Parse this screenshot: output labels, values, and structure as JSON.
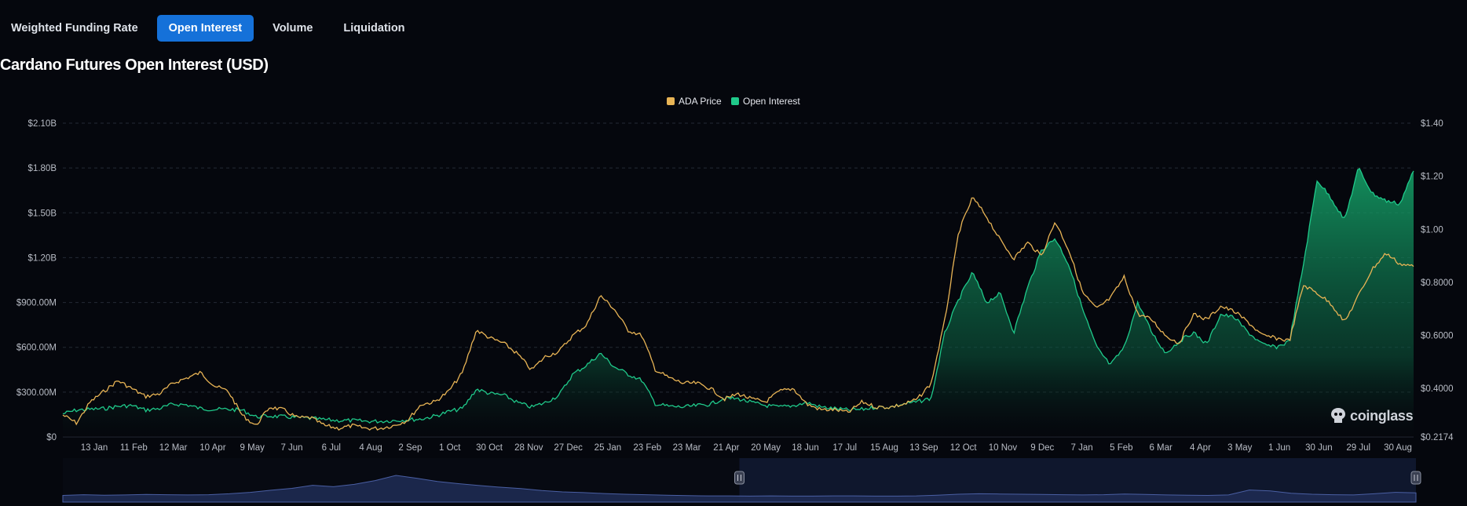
{
  "tabs": [
    {
      "label": "Weighted Funding Rate",
      "active": false
    },
    {
      "label": "Open Interest",
      "active": true
    },
    {
      "label": "Volume",
      "active": false
    },
    {
      "label": "Liquidation",
      "active": false
    }
  ],
  "brand": {
    "name": "coinglass"
  },
  "colors": {
    "background": "#05070d",
    "price_line": "#e8b455",
    "oi_line": "#1fc98a",
    "oi_fill_top": "#15a56a",
    "grid": "#242a35",
    "axis_text": "#b9bdc6",
    "navigator": "#1e2a52",
    "active_tab": "#1571d9"
  },
  "chart_data": {
    "type": "area",
    "title": "Cardano Futures Open Interest (USD)",
    "legend": [
      "ADA Price",
      "Open Interest"
    ],
    "legend_position": "top-center",
    "y_left": {
      "ticks": [
        "$0",
        "$300.00M",
        "$600.00M",
        "$900.00M",
        "$1.20B",
        "$1.50B",
        "$1.80B",
        "$2.10B"
      ],
      "min": 0,
      "max": 2100000000
    },
    "y_right": {
      "ticks": [
        "$0.2174",
        "$0.4000",
        "$0.6000",
        "$0.8000",
        "$1.00",
        "$1.20",
        "$1.40"
      ],
      "min": 0.2174,
      "max": 1.4
    },
    "x_ticks": [
      "13 Jan",
      "11 Feb",
      "12 Mar",
      "10 Apr",
      "9 May",
      "7 Jun",
      "6 Jul",
      "4 Aug",
      "2 Sep",
      "1 Oct",
      "30 Oct",
      "28 Nov",
      "27 Dec",
      "25 Jan",
      "23 Feb",
      "23 Mar",
      "21 Apr",
      "20 May",
      "18 Jun",
      "17 Jul",
      "15 Aug",
      "13 Sep",
      "12 Oct",
      "10 Nov",
      "9 Dec",
      "7 Jan",
      "5 Feb",
      "6 Mar",
      "4 Apr",
      "3 May",
      "1 Jun",
      "30 Jun",
      "29 Jul",
      "30 Aug"
    ],
    "series": [
      {
        "name": "ADA Price",
        "axis": "right",
        "values": [
          0.3,
          0.27,
          0.35,
          0.39,
          0.43,
          0.4,
          0.37,
          0.38,
          0.42,
          0.44,
          0.46,
          0.41,
          0.39,
          0.3,
          0.26,
          0.33,
          0.32,
          0.29,
          0.29,
          0.26,
          0.25,
          0.26,
          0.25,
          0.25,
          0.26,
          0.28,
          0.34,
          0.35,
          0.39,
          0.46,
          0.62,
          0.59,
          0.57,
          0.53,
          0.47,
          0.52,
          0.54,
          0.6,
          0.64,
          0.75,
          0.7,
          0.62,
          0.6,
          0.47,
          0.44,
          0.42,
          0.42,
          0.4,
          0.36,
          0.38,
          0.36,
          0.35,
          0.39,
          0.4,
          0.34,
          0.32,
          0.32,
          0.31,
          0.35,
          0.33,
          0.33,
          0.34,
          0.36,
          0.42,
          0.66,
          0.99,
          1.12,
          1.05,
          0.96,
          0.89,
          0.95,
          0.9,
          1.03,
          0.92,
          0.76,
          0.7,
          0.74,
          0.82,
          0.68,
          0.66,
          0.6,
          0.57,
          0.68,
          0.66,
          0.71,
          0.69,
          0.65,
          0.6,
          0.59,
          0.58,
          0.79,
          0.76,
          0.72,
          0.65,
          0.75,
          0.85,
          0.91,
          0.87,
          0.86
        ]
      },
      {
        "name": "Open Interest",
        "axis": "left",
        "values": [
          155000000,
          180000000,
          185000000,
          190000000,
          205000000,
          210000000,
          180000000,
          190000000,
          220000000,
          215000000,
          190000000,
          185000000,
          185000000,
          180000000,
          135000000,
          140000000,
          135000000,
          130000000,
          125000000,
          115000000,
          110000000,
          110000000,
          105000000,
          105000000,
          110000000,
          115000000,
          120000000,
          140000000,
          170000000,
          190000000,
          320000000,
          290000000,
          280000000,
          230000000,
          200000000,
          230000000,
          280000000,
          420000000,
          480000000,
          560000000,
          470000000,
          420000000,
          380000000,
          220000000,
          205000000,
          200000000,
          210000000,
          220000000,
          260000000,
          255000000,
          230000000,
          210000000,
          200000000,
          210000000,
          230000000,
          200000000,
          190000000,
          180000000,
          185000000,
          200000000,
          200000000,
          220000000,
          235000000,
          260000000,
          700000000,
          920000000,
          1100000000,
          900000000,
          960000000,
          700000000,
          1000000000,
          1250000000,
          1330000000,
          1150000000,
          850000000,
          600000000,
          480000000,
          600000000,
          900000000,
          700000000,
          560000000,
          640000000,
          700000000,
          620000000,
          820000000,
          800000000,
          700000000,
          620000000,
          600000000,
          640000000,
          1150000000,
          1720000000,
          1600000000,
          1450000000,
          1800000000,
          1630000000,
          1580000000,
          1560000000,
          1780000000
        ]
      }
    ],
    "navigator": {
      "values": [
        0.15,
        0.18,
        0.16,
        0.17,
        0.19,
        0.18,
        0.17,
        0.18,
        0.22,
        0.28,
        0.37,
        0.45,
        0.58,
        0.52,
        0.62,
        0.78,
        1.0,
        0.88,
        0.74,
        0.65,
        0.57,
        0.5,
        0.44,
        0.36,
        0.3,
        0.27,
        0.23,
        0.2,
        0.18,
        0.16,
        0.14,
        0.13,
        0.13,
        0.12,
        0.13,
        0.12,
        0.12,
        0.13,
        0.13,
        0.12,
        0.12,
        0.13,
        0.16,
        0.2,
        0.22,
        0.21,
        0.2,
        0.19,
        0.18,
        0.17,
        0.18,
        0.21,
        0.19,
        0.17,
        0.16,
        0.15,
        0.17,
        0.38,
        0.34,
        0.24,
        0.2,
        0.18,
        0.17,
        0.22,
        0.28,
        0.26
      ],
      "selection_start": 0.5,
      "selection_end": 1.0
    }
  }
}
